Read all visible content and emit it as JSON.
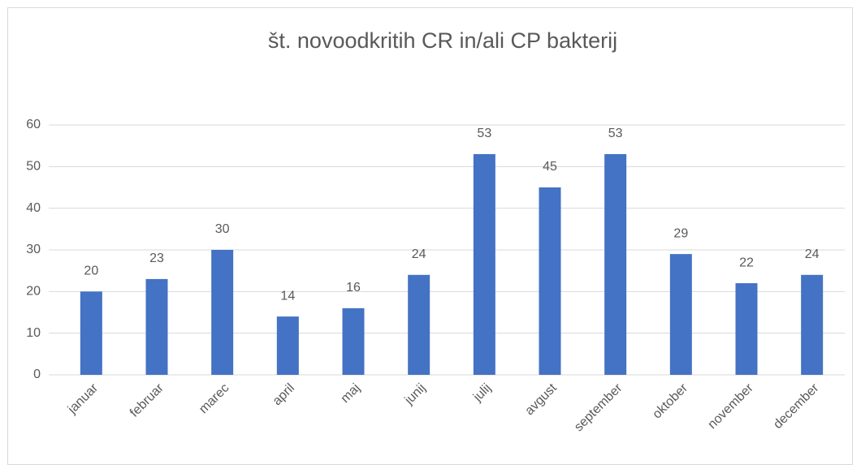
{
  "chart_data": {
    "type": "bar",
    "title": "št. novoodkritih CR in/ali CP bakterij",
    "categories": [
      "januar",
      "februar",
      "marec",
      "april",
      "maj",
      "junij",
      "julij",
      "avgust",
      "september",
      "oktober",
      "november",
      "december"
    ],
    "values": [
      20,
      23,
      30,
      14,
      16,
      24,
      53,
      45,
      53,
      29,
      22,
      24
    ],
    "color": "#4472c4",
    "ylim": [
      0,
      60
    ],
    "yticks": [
      0,
      10,
      20,
      30,
      40,
      50,
      60
    ],
    "grid": true
  }
}
